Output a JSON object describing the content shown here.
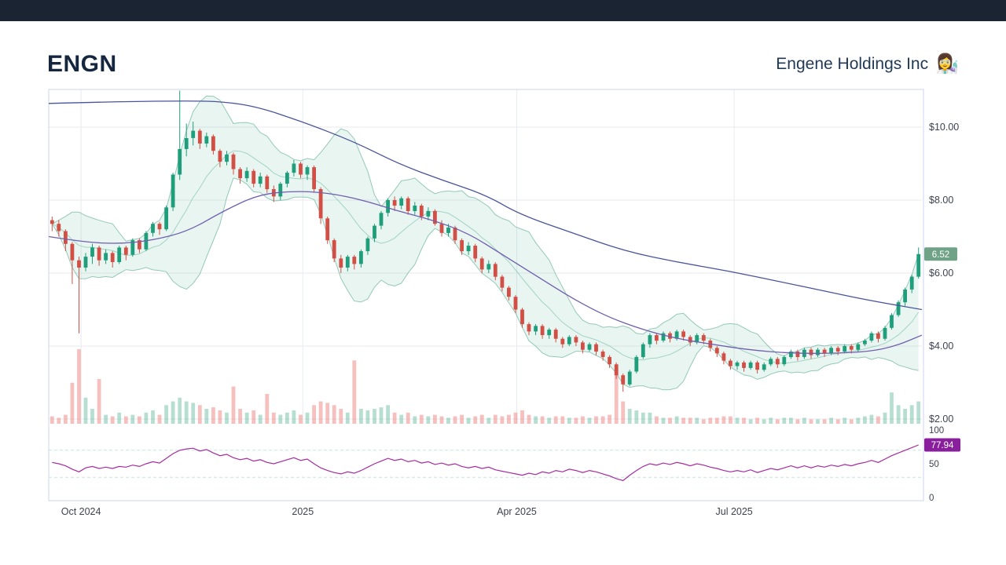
{
  "header": {
    "ticker": "ENGN",
    "company": "Engene Holdings Inc",
    "emoji": "👩‍🔬"
  },
  "colors": {
    "topbar_bg": "#1b2433",
    "up": "#1f9e7b",
    "down": "#d24f46",
    "vol_up": "rgba(45,163,124,0.35)",
    "vol_down": "rgba(235,130,126,0.5)",
    "band_fill": "rgba(110,190,160,0.15)",
    "band_edge": "rgba(70,160,132,0.55)",
    "band_mid": "rgba(130,198,176,0.7)",
    "sma_long": "#49549b",
    "sma_mid": "#6f5fae",
    "rsi": "#a62ca0",
    "rsi_guide": "#c7e6da",
    "grid": "#e9eaef",
    "border": "#ccd5ec",
    "label": "#3c4250",
    "badge_price_bg": "#6fa287",
    "badge_rsi_bg": "#8a1f9e"
  },
  "chart_data": {
    "type": "candlestick",
    "title": "ENGN daily price with Bollinger bands, moving averages, volume and RSI",
    "ylim": [
      2,
      11
    ],
    "price_axis": [
      {
        "label": "$10.00",
        "value": 10
      },
      {
        "label": "$8.00",
        "value": 8
      },
      {
        "label": "$6.00",
        "value": 6
      },
      {
        "label": "$4.00",
        "value": 4
      },
      {
        "label": "$2.00",
        "value": 2
      }
    ],
    "x_axis": [
      {
        "label": "Oct 2024",
        "t": 0.037
      },
      {
        "label": "2025",
        "t": 0.291
      },
      {
        "label": "Apr 2025",
        "t": 0.536
      },
      {
        "label": "Jul 2025",
        "t": 0.785
      }
    ],
    "rsi_axis": [
      {
        "label": "100",
        "value": 100
      },
      {
        "label": "50",
        "value": 50
      },
      {
        "label": "0",
        "value": 0
      }
    ],
    "last_price": {
      "label": "6.52",
      "value": 6.52
    },
    "rsi_last": {
      "label": "77.94",
      "value": 77.94
    },
    "bollinger": {
      "window": 10,
      "mult": 2
    },
    "sma_long": [
      [
        0,
        10.65
      ],
      [
        0.08,
        10.7
      ],
      [
        0.16,
        10.72
      ],
      [
        0.2,
        10.7
      ],
      [
        0.24,
        10.55
      ],
      [
        0.29,
        10.15
      ],
      [
        0.35,
        9.6
      ],
      [
        0.4,
        9.0
      ],
      [
        0.45,
        8.55
      ],
      [
        0.5,
        8.15
      ],
      [
        0.54,
        7.6
      ],
      [
        0.6,
        7.1
      ],
      [
        0.66,
        6.6
      ],
      [
        0.72,
        6.3
      ],
      [
        0.78,
        6.05
      ],
      [
        0.84,
        5.75
      ],
      [
        0.89,
        5.5
      ],
      [
        0.94,
        5.25
      ],
      [
        1,
        5.0
      ]
    ],
    "sma_mid": [
      [
        0,
        7.0
      ],
      [
        0.04,
        6.85
      ],
      [
        0.08,
        6.8
      ],
      [
        0.12,
        6.9
      ],
      [
        0.16,
        7.15
      ],
      [
        0.2,
        7.7
      ],
      [
        0.24,
        8.15
      ],
      [
        0.28,
        8.25
      ],
      [
        0.32,
        8.2
      ],
      [
        0.36,
        8.0
      ],
      [
        0.4,
        7.7
      ],
      [
        0.44,
        7.45
      ],
      [
        0.48,
        7.1
      ],
      [
        0.52,
        6.5
      ],
      [
        0.56,
        5.9
      ],
      [
        0.6,
        5.3
      ],
      [
        0.64,
        4.8
      ],
      [
        0.68,
        4.45
      ],
      [
        0.72,
        4.2
      ],
      [
        0.76,
        4.05
      ],
      [
        0.8,
        3.9
      ],
      [
        0.85,
        3.8
      ],
      [
        0.9,
        3.8
      ],
      [
        0.94,
        3.85
      ],
      [
        0.97,
        4.0
      ],
      [
        1,
        4.3
      ]
    ],
    "candles": [
      [
        7.45,
        7.55,
        7.15,
        7.35,
        0.1
      ],
      [
        7.35,
        7.45,
        7.0,
        7.15,
        0.08
      ],
      [
        7.15,
        7.2,
        6.6,
        6.8,
        0.12
      ],
      [
        6.8,
        6.85,
        5.7,
        6.35,
        0.55
      ],
      [
        6.35,
        6.45,
        4.35,
        6.15,
        1.0
      ],
      [
        6.15,
        6.55,
        6.05,
        6.45,
        0.35
      ],
      [
        6.45,
        6.8,
        6.25,
        6.7,
        0.2
      ],
      [
        6.7,
        6.75,
        6.2,
        6.35,
        0.6
      ],
      [
        6.35,
        6.65,
        6.25,
        6.55,
        0.12
      ],
      [
        6.55,
        6.6,
        6.15,
        6.3,
        0.1
      ],
      [
        6.3,
        6.75,
        6.25,
        6.7,
        0.15
      ],
      [
        6.7,
        6.75,
        6.35,
        6.5,
        0.1
      ],
      [
        6.5,
        6.95,
        6.45,
        6.9,
        0.12
      ],
      [
        6.9,
        6.95,
        6.55,
        6.65,
        0.1
      ],
      [
        6.65,
        7.15,
        6.6,
        7.1,
        0.15
      ],
      [
        7.1,
        7.4,
        7.0,
        7.35,
        0.18
      ],
      [
        7.35,
        7.4,
        7.05,
        7.2,
        0.12
      ],
      [
        7.2,
        7.85,
        7.15,
        7.8,
        0.25
      ],
      [
        7.8,
        8.75,
        7.7,
        8.7,
        0.3
      ],
      [
        8.7,
        11.0,
        8.55,
        9.4,
        0.35
      ],
      [
        9.4,
        10.1,
        9.2,
        9.7,
        0.3
      ],
      [
        9.7,
        10.15,
        9.5,
        9.9,
        0.28
      ],
      [
        9.9,
        9.95,
        9.4,
        9.55,
        0.25
      ],
      [
        9.55,
        9.85,
        9.45,
        9.75,
        0.2
      ],
      [
        9.75,
        9.8,
        9.25,
        9.35,
        0.22
      ],
      [
        9.35,
        9.4,
        8.9,
        9.05,
        0.18
      ],
      [
        9.05,
        9.35,
        8.95,
        9.25,
        0.15
      ],
      [
        9.25,
        9.3,
        8.7,
        8.85,
        0.5
      ],
      [
        8.85,
        8.9,
        8.45,
        8.6,
        0.2
      ],
      [
        8.6,
        8.9,
        8.5,
        8.8,
        0.15
      ],
      [
        8.8,
        8.85,
        8.35,
        8.45,
        0.18
      ],
      [
        8.45,
        8.75,
        8.35,
        8.65,
        0.12
      ],
      [
        8.65,
        8.7,
        8.2,
        8.3,
        0.4
      ],
      [
        8.3,
        8.4,
        7.95,
        8.1,
        0.15
      ],
      [
        8.1,
        8.5,
        8.0,
        8.45,
        0.12
      ],
      [
        8.45,
        8.8,
        8.35,
        8.75,
        0.15
      ],
      [
        8.75,
        9.1,
        8.65,
        9.0,
        0.18
      ],
      [
        9.0,
        9.05,
        8.6,
        8.7,
        0.12
      ],
      [
        8.7,
        8.95,
        8.55,
        8.9,
        0.15
      ],
      [
        8.9,
        8.95,
        8.2,
        8.3,
        0.25
      ],
      [
        8.3,
        8.35,
        7.35,
        7.5,
        0.3
      ],
      [
        7.5,
        7.55,
        6.8,
        6.9,
        0.28
      ],
      [
        6.9,
        6.95,
        6.3,
        6.4,
        0.25
      ],
      [
        6.4,
        6.5,
        6.0,
        6.15,
        0.2
      ],
      [
        6.15,
        6.5,
        6.05,
        6.45,
        0.15
      ],
      [
        6.45,
        6.5,
        6.1,
        6.25,
        0.85
      ],
      [
        6.25,
        6.65,
        6.15,
        6.6,
        0.2
      ],
      [
        6.6,
        7.0,
        6.5,
        6.95,
        0.18
      ],
      [
        6.95,
        7.35,
        6.85,
        7.3,
        0.2
      ],
      [
        7.3,
        7.7,
        7.2,
        7.65,
        0.22
      ],
      [
        7.65,
        8.05,
        7.55,
        8.0,
        0.25
      ],
      [
        8.0,
        8.1,
        7.7,
        7.85,
        0.15
      ],
      [
        7.85,
        8.1,
        7.75,
        8.05,
        0.12
      ],
      [
        8.05,
        8.1,
        7.6,
        7.7,
        0.15
      ],
      [
        7.7,
        7.95,
        7.6,
        7.85,
        0.1
      ],
      [
        7.85,
        7.9,
        7.45,
        7.55,
        0.12
      ],
      [
        7.55,
        7.8,
        7.45,
        7.7,
        0.1
      ],
      [
        7.7,
        7.75,
        7.3,
        7.35,
        0.12
      ],
      [
        7.35,
        7.45,
        7.0,
        7.1,
        0.1
      ],
      [
        7.1,
        7.35,
        7.0,
        7.25,
        0.08
      ],
      [
        7.25,
        7.3,
        6.8,
        6.9,
        0.1
      ],
      [
        6.9,
        6.95,
        6.5,
        6.6,
        0.12
      ],
      [
        6.6,
        6.85,
        6.5,
        6.75,
        0.08
      ],
      [
        6.75,
        6.8,
        6.3,
        6.4,
        0.1
      ],
      [
        6.4,
        6.45,
        6.0,
        6.1,
        0.12
      ],
      [
        6.1,
        6.35,
        6.0,
        6.25,
        0.08
      ],
      [
        6.25,
        6.3,
        5.8,
        5.9,
        0.12
      ],
      [
        5.9,
        5.95,
        5.5,
        5.6,
        0.1
      ],
      [
        5.6,
        5.65,
        5.25,
        5.35,
        0.12
      ],
      [
        5.35,
        5.4,
        4.9,
        5.0,
        0.15
      ],
      [
        5.0,
        5.05,
        4.5,
        4.6,
        0.18
      ],
      [
        4.6,
        4.65,
        4.3,
        4.4,
        0.12
      ],
      [
        4.4,
        4.6,
        4.3,
        4.55,
        0.1
      ],
      [
        4.55,
        4.6,
        4.2,
        4.3,
        0.1
      ],
      [
        4.3,
        4.5,
        4.2,
        4.45,
        0.08
      ],
      [
        4.45,
        4.5,
        4.1,
        4.2,
        0.1
      ],
      [
        4.2,
        4.25,
        3.95,
        4.05,
        0.1
      ],
      [
        4.05,
        4.3,
        4.0,
        4.25,
        0.08
      ],
      [
        4.25,
        4.3,
        4.0,
        4.1,
        0.08
      ],
      [
        4.1,
        4.15,
        3.8,
        3.9,
        0.1
      ],
      [
        3.9,
        4.1,
        3.85,
        4.05,
        0.08
      ],
      [
        4.05,
        4.1,
        3.75,
        3.85,
        0.1
      ],
      [
        3.85,
        3.9,
        3.6,
        3.7,
        0.1
      ],
      [
        3.7,
        3.75,
        3.4,
        3.5,
        0.12
      ],
      [
        3.5,
        3.55,
        3.1,
        3.2,
        0.75
      ],
      [
        3.2,
        3.25,
        2.75,
        2.95,
        0.3
      ],
      [
        2.95,
        3.35,
        2.9,
        3.3,
        0.2
      ],
      [
        3.3,
        3.75,
        3.25,
        3.7,
        0.18
      ],
      [
        3.7,
        4.1,
        3.65,
        4.05,
        0.15
      ],
      [
        4.05,
        4.35,
        3.95,
        4.3,
        0.15
      ],
      [
        4.3,
        4.35,
        4.05,
        4.15,
        0.1
      ],
      [
        4.15,
        4.4,
        4.1,
        4.35,
        0.08
      ],
      [
        4.35,
        4.4,
        4.1,
        4.2,
        0.08
      ],
      [
        4.2,
        4.45,
        4.15,
        4.4,
        0.1
      ],
      [
        4.4,
        4.45,
        4.15,
        4.25,
        0.08
      ],
      [
        4.25,
        4.3,
        4.0,
        4.1,
        0.08
      ],
      [
        4.1,
        4.35,
        4.05,
        4.3,
        0.08
      ],
      [
        4.3,
        4.35,
        4.05,
        4.15,
        0.06
      ],
      [
        4.15,
        4.2,
        3.85,
        3.95,
        0.08
      ],
      [
        3.95,
        4.0,
        3.7,
        3.8,
        0.08
      ],
      [
        3.8,
        3.85,
        3.5,
        3.6,
        0.1
      ],
      [
        3.6,
        3.65,
        3.35,
        3.45,
        0.1
      ],
      [
        3.45,
        3.6,
        3.35,
        3.55,
        0.08
      ],
      [
        3.55,
        3.6,
        3.3,
        3.4,
        0.08
      ],
      [
        3.4,
        3.6,
        3.35,
        3.55,
        0.06
      ],
      [
        3.55,
        3.6,
        3.25,
        3.35,
        0.08
      ],
      [
        3.35,
        3.55,
        3.3,
        3.5,
        0.06
      ],
      [
        3.5,
        3.7,
        3.45,
        3.65,
        0.08
      ],
      [
        3.65,
        3.7,
        3.4,
        3.5,
        0.06
      ],
      [
        3.5,
        3.75,
        3.45,
        3.7,
        0.08
      ],
      [
        3.7,
        3.9,
        3.65,
        3.85,
        0.08
      ],
      [
        3.85,
        3.9,
        3.6,
        3.7,
        0.06
      ],
      [
        3.7,
        3.95,
        3.65,
        3.9,
        0.08
      ],
      [
        3.9,
        3.95,
        3.65,
        3.75,
        0.06
      ],
      [
        3.75,
        3.95,
        3.7,
        3.9,
        0.06
      ],
      [
        3.9,
        3.95,
        3.7,
        3.8,
        0.06
      ],
      [
        3.8,
        4.0,
        3.75,
        3.95,
        0.08
      ],
      [
        3.95,
        4.0,
        3.75,
        3.85,
        0.06
      ],
      [
        3.85,
        4.05,
        3.8,
        4.0,
        0.08
      ],
      [
        4.0,
        4.05,
        3.8,
        3.9,
        0.06
      ],
      [
        3.9,
        4.1,
        3.85,
        4.05,
        0.08
      ],
      [
        4.05,
        4.2,
        4.0,
        4.15,
        0.1
      ],
      [
        4.15,
        4.4,
        4.1,
        4.35,
        0.12
      ],
      [
        4.35,
        4.4,
        4.1,
        4.2,
        0.1
      ],
      [
        4.2,
        4.55,
        4.15,
        4.5,
        0.15
      ],
      [
        4.5,
        4.9,
        4.45,
        4.85,
        0.42
      ],
      [
        4.85,
        5.25,
        4.8,
        5.2,
        0.25
      ],
      [
        5.2,
        5.6,
        5.1,
        5.55,
        0.2
      ],
      [
        5.55,
        5.95,
        5.45,
        5.9,
        0.25
      ],
      [
        5.9,
        6.7,
        5.85,
        6.52,
        0.3
      ]
    ],
    "rsi": [
      52,
      50,
      47,
      42,
      38,
      44,
      46,
      43,
      45,
      43,
      46,
      45,
      48,
      46,
      50,
      53,
      51,
      58,
      65,
      70,
      72,
      73,
      69,
      71,
      66,
      62,
      64,
      59,
      56,
      58,
      54,
      56,
      52,
      50,
      53,
      56,
      59,
      55,
      57,
      50,
      44,
      40,
      37,
      35,
      38,
      36,
      40,
      45,
      50,
      54,
      58,
      55,
      57,
      53,
      55,
      51,
      53,
      49,
      51,
      48,
      50,
      46,
      44,
      46,
      43,
      45,
      41,
      39,
      37,
      35,
      33,
      36,
      34,
      38,
      36,
      40,
      38,
      42,
      40,
      37,
      40,
      38,
      35,
      32,
      28,
      25,
      33,
      40,
      46,
      50,
      48,
      51,
      49,
      52,
      50,
      47,
      50,
      48,
      45,
      43,
      40,
      38,
      40,
      38,
      41,
      37,
      40,
      43,
      41,
      44,
      47,
      44,
      47,
      44,
      47,
      45,
      48,
      46,
      49,
      47,
      50,
      52,
      55,
      52,
      57,
      62,
      66,
      70,
      74,
      77.94
    ]
  }
}
